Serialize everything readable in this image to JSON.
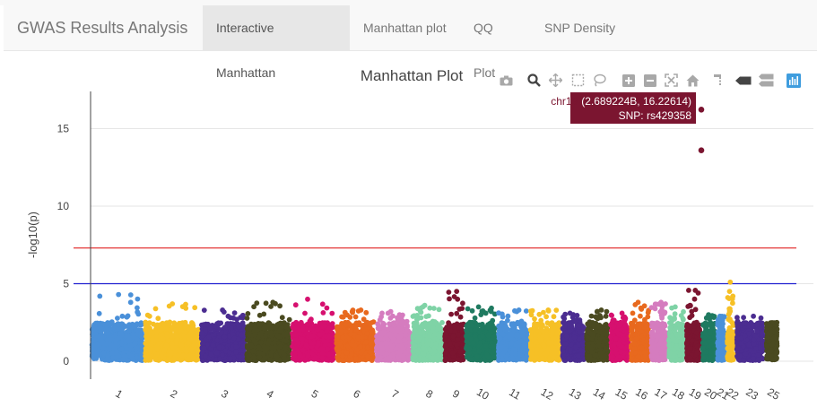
{
  "app": {
    "brand": "GWAS Results Analysis",
    "tabs": [
      {
        "label": "Interactive Manhattan",
        "active": true
      },
      {
        "label": "Manhattan plot",
        "active": false
      },
      {
        "label": "QQ Plot",
        "active": false
      },
      {
        "label": "SNP Density",
        "active": false
      }
    ]
  },
  "modebar": {
    "icons": [
      "camera-icon",
      "zoom-icon",
      "pan-icon",
      "box-select-icon",
      "lasso-select-icon",
      "zoom-in-icon",
      "zoom-out-icon",
      "autoscale-icon",
      "reset-axes-icon",
      "spike-lines-icon",
      "closest-hover-icon",
      "compare-hover-icon",
      "plotly-logo-icon"
    ]
  },
  "colors": {
    "threshold_genomewide": "#e02020",
    "threshold_suggestive": "#2020d0",
    "tooltip_bg": "#7b1530"
  },
  "chart_data": {
    "type": "scatter",
    "title": "Manhattan Plot",
    "xlabel": "",
    "ylabel": "-log10(p)",
    "ylim": [
      0,
      17.5
    ],
    "yticks": [
      0,
      5,
      10,
      15
    ],
    "grid": true,
    "thresholds": [
      7.3,
      5
    ],
    "chromosomes": [
      {
        "label": "1",
        "color": "#4a90d9",
        "peak": 4.3
      },
      {
        "label": "2",
        "color": "#f6c026",
        "peak": 3.7
      },
      {
        "label": "3",
        "color": "#4b2d91",
        "peak": 3.3
      },
      {
        "label": "4",
        "color": "#4a4a20",
        "peak": 3.8
      },
      {
        "label": "5",
        "color": "#d6106f",
        "peak": 4.0
      },
      {
        "label": "6",
        "color": "#e8691e",
        "peak": 3.3
      },
      {
        "label": "7",
        "color": "#d57cbf",
        "peak": 3.2
      },
      {
        "label": "8",
        "color": "#7fd3a6",
        "peak": 3.6
      },
      {
        "label": "9",
        "color": "#7b1530",
        "peak": 4.5
      },
      {
        "label": "10",
        "color": "#1f7a60",
        "peak": 3.5
      },
      {
        "label": "11",
        "color": "#4a90d9",
        "peak": 3.3
      },
      {
        "label": "12",
        "color": "#f6c026",
        "peak": 3.3
      },
      {
        "label": "13",
        "color": "#4b2d91",
        "peak": 3.1
      },
      {
        "label": "14",
        "color": "#4a4a20",
        "peak": 3.3
      },
      {
        "label": "15",
        "color": "#d6106f",
        "peak": 3.1
      },
      {
        "label": "16",
        "color": "#e8691e",
        "peak": 3.8
      },
      {
        "label": "17",
        "color": "#d57cbf",
        "peak": 3.8
      },
      {
        "label": "18",
        "color": "#7fd3a6",
        "peak": 3.5
      },
      {
        "label": "19",
        "color": "#7b1530",
        "peak": 16.2
      },
      {
        "label": "20",
        "color": "#1f7a60",
        "peak": 3.0
      },
      {
        "label": "21",
        "color": "#4a90d9",
        "peak": 2.9
      },
      {
        "label": "22",
        "color": "#f6c026",
        "peak": 5.1
      },
      {
        "label": "23",
        "color": "#4b2d91",
        "peak": 2.9
      },
      {
        "label": "25",
        "color": "#4a4a20",
        "peak": 2.3
      }
    ],
    "highlight_points": [
      {
        "chr": "chr19",
        "x": "2.689224B",
        "y": 16.22614,
        "snp": "rs429358"
      },
      {
        "chr": "chr19",
        "y": 13.6
      }
    ],
    "tooltip": {
      "line1_chr": "chr19",
      "line1_coords": "(2.689224B, 16.22614)",
      "line2": "SNP: rs429358"
    }
  }
}
